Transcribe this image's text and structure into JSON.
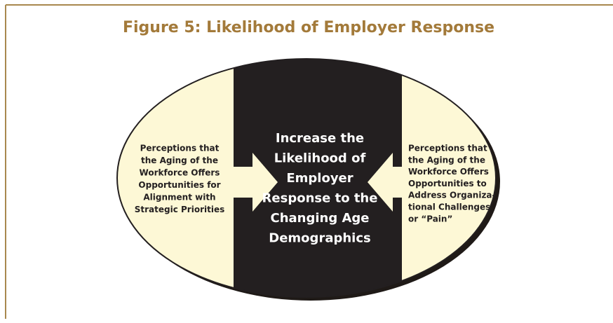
{
  "title": "Figure 5:  Likelihood of Employer Response",
  "left": {
    "lines": [
      "Perceptions that",
      "the Aging of the",
      "Workforce Offers",
      "Opportunities for",
      "Alignment with",
      "Strategic Priorities"
    ]
  },
  "center": {
    "lines": [
      "Increase the",
      "Likelihood of",
      "Employer",
      "Response to the",
      "Changing Age",
      "Demographics"
    ]
  },
  "right": {
    "lines": [
      "Perceptions that",
      "the Aging of the",
      "Workforce Offers",
      "Opportunities to",
      "Address Organiza-",
      "tional Challenges",
      "or “Pain”"
    ]
  }
}
